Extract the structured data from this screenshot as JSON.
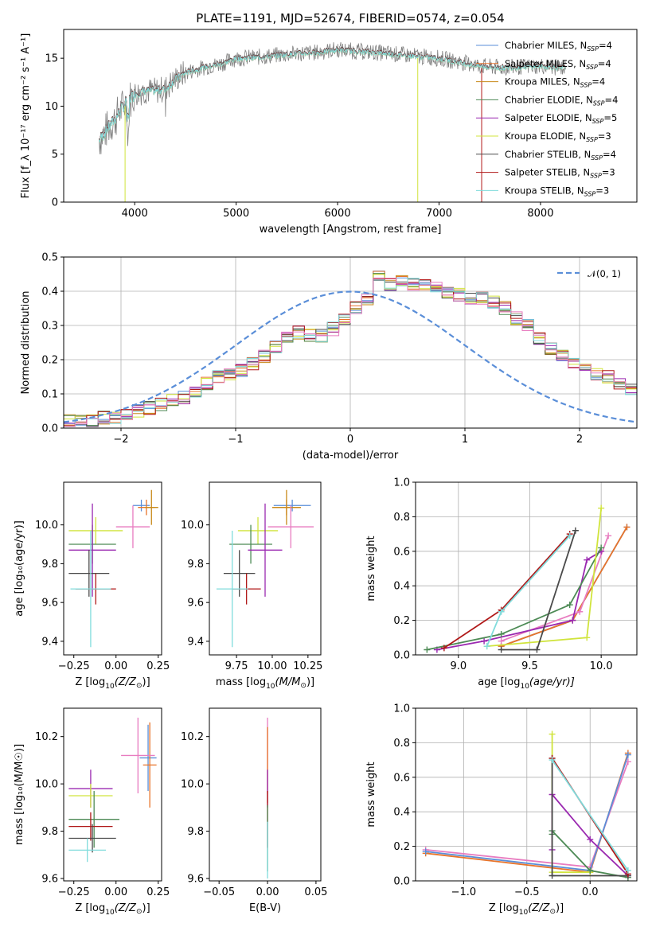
{
  "colors": {
    "chabrier_miles": "#5a8ed8",
    "salpeter_miles": "#e8742a",
    "kroupa_miles": "#c88a1a",
    "chabrier_elodie": "#4d8a55",
    "salpeter_elodie": "#9a28b0",
    "kroupa_elodie": "#d0e43c",
    "chabrier_stelib": "#4a4a4a",
    "salpeter_stelib": "#b01818",
    "kroupa_stelib": "#80dcdc",
    "pink": "#e87cc0",
    "data": "#808080"
  },
  "chart_data": [
    {
      "id": "spectrum",
      "type": "line",
      "title": "PLATE=1191, MJD=52674, FIBERID=0574, z=0.054",
      "xlabel": "wavelength [Angstrom, rest frame]",
      "ylabel": "Flux [f_λ 10⁻¹⁷ erg cm⁻² s⁻¹ A⁻¹]",
      "xlim": [
        3300,
        8950
      ],
      "ylim": [
        0,
        18
      ],
      "xticks": [
        "4000",
        "5000",
        "6000",
        "7000",
        "8000"
      ],
      "yticks": [
        "0",
        "5",
        "10",
        "15"
      ],
      "x": [
        3650,
        3700,
        3800,
        3900,
        4000,
        4100,
        4200,
        4300,
        4400,
        4500,
        4600,
        4700,
        4800,
        4900,
        5000,
        5200,
        5400,
        5600,
        5800,
        6000,
        6200,
        6400,
        6600,
        6800,
        7000,
        7200,
        7400,
        7600,
        7800,
        8000,
        8200
      ],
      "y_model": [
        6.5,
        7.2,
        8.6,
        10.2,
        11.3,
        11.6,
        11.6,
        11.8,
        12.8,
        13.5,
        13.8,
        14.1,
        14.3,
        14.6,
        15.0,
        15.1,
        15.3,
        15.5,
        15.6,
        15.9,
        15.7,
        15.6,
        15.4,
        15.2,
        15.0,
        14.6,
        14.2,
        14.0,
        14.1,
        14.2,
        14.0
      ],
      "series": [
        {
          "name": "Chabrier MILES, N",
          "nssp": "=4",
          "color_key": "chabrier_miles"
        },
        {
          "name": "Salpeter MILES, N",
          "nssp": "=4",
          "color_key": "salpeter_miles"
        },
        {
          "name": "Kroupa MILES, N",
          "nssp": "=4",
          "color_key": "kroupa_miles"
        },
        {
          "name": "Chabrier ELODIE, N",
          "nssp": "=4",
          "color_key": "chabrier_elodie"
        },
        {
          "name": "Salpeter ELODIE, N",
          "nssp": "=5",
          "color_key": "salpeter_elodie"
        },
        {
          "name": "Kroupa ELODIE, N",
          "nssp": "=3",
          "color_key": "kroupa_elodie"
        },
        {
          "name": "Chabrier STELIB, N",
          "nssp": "=4",
          "color_key": "chabrier_stelib"
        },
        {
          "name": "Salpeter STELIB, N",
          "nssp": "=3",
          "color_key": "salpeter_stelib"
        },
        {
          "name": "Kroupa STELIB, N",
          "nssp": "=3",
          "color_key": "kroupa_stelib"
        }
      ],
      "legend_sub": "SSP",
      "legend_position": "upper-right"
    },
    {
      "id": "residuals",
      "type": "histogram",
      "xlabel": "(data-model)/error",
      "ylabel": "Normed distribution",
      "xlim": [
        -2.5,
        2.5
      ],
      "ylim": [
        0,
        0.5
      ],
      "xticks": [
        "−2",
        "−1",
        "0",
        "1",
        "2"
      ],
      "yticks": [
        "0.0",
        "0.1",
        "0.2",
        "0.3",
        "0.4",
        "0.5"
      ],
      "bin_width": 0.1,
      "bin_start": -2.5,
      "values": [
        0.02,
        0.02,
        0.02,
        0.03,
        0.03,
        0.04,
        0.05,
        0.06,
        0.07,
        0.08,
        0.09,
        0.11,
        0.13,
        0.15,
        0.16,
        0.17,
        0.19,
        0.21,
        0.24,
        0.27,
        0.28,
        0.27,
        0.27,
        0.29,
        0.32,
        0.35,
        0.38,
        0.45,
        0.42,
        0.43,
        0.42,
        0.42,
        0.41,
        0.4,
        0.39,
        0.38,
        0.38,
        0.37,
        0.35,
        0.32,
        0.3,
        0.26,
        0.23,
        0.21,
        0.19,
        0.17,
        0.16,
        0.15,
        0.13,
        0.11,
        0.09,
        0.08,
        0.06,
        0.05,
        0.04,
        0.03,
        0.03,
        0.02,
        0.02,
        0.02
      ],
      "legend": "𝒩(0, 1)",
      "legend_position": "upper-right",
      "grid": true
    },
    {
      "id": "age_vs_z",
      "type": "errorbar",
      "xlabel_pre": "Z [log",
      "xlabel_sub": "10",
      "xlabel_post": "(Z/Z",
      "xlabel_end": ")]",
      "ylabel": "age  [log₁₀(age/yr)]",
      "xlim": [
        -0.31,
        0.27
      ],
      "ylim": [
        9.33,
        10.22
      ],
      "xticks": [
        "−0.25",
        "0.00",
        "0.25"
      ],
      "yticks": [
        "9.4",
        "9.6",
        "9.8",
        "10.0"
      ],
      "points": [
        {
          "x": 0.15,
          "y": 10.1,
          "xerr": 0.05,
          "yerr": 0.03,
          "color_key": "chabrier_miles"
        },
        {
          "x": 0.18,
          "y": 10.09,
          "xerr": 0.05,
          "yerr": 0.04,
          "color_key": "salpeter_miles"
        },
        {
          "x": 0.21,
          "y": 10.09,
          "xerr": 0.04,
          "yerr": 0.09,
          "color_key": "kroupa_miles"
        },
        {
          "x": 0.1,
          "y": 9.99,
          "xerr": 0.1,
          "yerr": 0.11,
          "color_key": "pink"
        },
        {
          "x": -0.12,
          "y": 9.97,
          "xerr": 0.16,
          "yerr": 0.07,
          "color_key": "kroupa_elodie"
        },
        {
          "x": -0.14,
          "y": 9.9,
          "xerr": 0.14,
          "yerr": 0.1,
          "color_key": "chabrier_elodie"
        },
        {
          "x": -0.14,
          "y": 9.87,
          "xerr": 0.14,
          "yerr": 0.24,
          "color_key": "salpeter_elodie"
        },
        {
          "x": -0.16,
          "y": 9.75,
          "xerr": 0.12,
          "yerr": 0.12,
          "color_key": "chabrier_stelib"
        },
        {
          "x": -0.12,
          "y": 9.67,
          "xerr": 0.12,
          "yerr": 0.08,
          "color_key": "salpeter_stelib"
        },
        {
          "x": -0.15,
          "y": 9.67,
          "xerr": 0.12,
          "yerr": 0.3,
          "color_key": "kroupa_stelib"
        }
      ]
    },
    {
      "id": "age_vs_mass",
      "type": "errorbar",
      "xlabel_pre": "mass [log",
      "xlabel_sub": "10",
      "xlabel_post": "(M/M",
      "xlabel_end": ")]",
      "xlim": [
        9.56,
        10.34
      ],
      "ylim": [
        9.33,
        10.22
      ],
      "xticks": [
        "9.75",
        "10.00",
        "10.25"
      ],
      "yticks": [
        "9.4",
        "9.6",
        "9.8",
        "10.0"
      ],
      "points": [
        {
          "x": 10.14,
          "y": 10.1,
          "xerr": 0.13,
          "yerr": 0.03,
          "color_key": "chabrier_miles"
        },
        {
          "x": 10.1,
          "y": 10.09,
          "xerr": 0.1,
          "yerr": 0.04,
          "color_key": "salpeter_miles"
        },
        {
          "x": 10.1,
          "y": 10.09,
          "xerr": 0.1,
          "yerr": 0.09,
          "color_key": "kroupa_miles"
        },
        {
          "x": 10.13,
          "y": 9.99,
          "xerr": 0.16,
          "yerr": 0.11,
          "color_key": "pink"
        },
        {
          "x": 9.9,
          "y": 9.97,
          "xerr": 0.14,
          "yerr": 0.07,
          "color_key": "kroupa_elodie"
        },
        {
          "x": 9.85,
          "y": 9.9,
          "xerr": 0.15,
          "yerr": 0.1,
          "color_key": "chabrier_elodie"
        },
        {
          "x": 9.95,
          "y": 9.87,
          "xerr": 0.12,
          "yerr": 0.24,
          "color_key": "salpeter_elodie"
        },
        {
          "x": 9.77,
          "y": 9.75,
          "xerr": 0.11,
          "yerr": 0.12,
          "color_key": "chabrier_stelib"
        },
        {
          "x": 9.82,
          "y": 9.67,
          "xerr": 0.1,
          "yerr": 0.08,
          "color_key": "salpeter_stelib"
        },
        {
          "x": 9.72,
          "y": 9.67,
          "xerr": 0.11,
          "yerr": 0.3,
          "color_key": "kroupa_stelib"
        }
      ]
    },
    {
      "id": "weight_vs_age",
      "type": "line",
      "xlabel_pre": "age  [log",
      "xlabel_sub": "10",
      "xlabel_post": "(age/yr)]",
      "ylabel": "mass weight",
      "xlim": [
        8.7,
        10.25
      ],
      "ylim": [
        0,
        1
      ],
      "xticks": [
        "9.0",
        "9.5",
        "10.0"
      ],
      "yticks": [
        "0.0",
        "0.2",
        "0.4",
        "0.6",
        "0.8",
        "1.0"
      ],
      "grid": true,
      "series": [
        {
          "color_key": "chabrier_miles",
          "x": [
            9.3,
            9.8,
            10.18
          ],
          "y": [
            0.05,
            0.2,
            0.74
          ]
        },
        {
          "color_key": "salpeter_miles",
          "x": [
            9.3,
            9.8,
            10.18
          ],
          "y": [
            0.05,
            0.2,
            0.74
          ]
        },
        {
          "color_key": "pink",
          "x": [
            9.3,
            9.85,
            10.05
          ],
          "y": [
            0.08,
            0.25,
            0.69
          ]
        },
        {
          "color_key": "salpeter_elodie",
          "x": [
            8.85,
            9.18,
            9.8,
            9.9,
            10.0
          ],
          "y": [
            0.03,
            0.08,
            0.2,
            0.55,
            0.6
          ]
        },
        {
          "color_key": "chabrier_elodie",
          "x": [
            8.78,
            9.3,
            9.78,
            10.0
          ],
          "y": [
            0.03,
            0.12,
            0.29,
            0.62
          ]
        },
        {
          "color_key": "kroupa_elodie",
          "x": [
            9.2,
            9.9,
            10.0
          ],
          "y": [
            0.05,
            0.1,
            0.85
          ]
        },
        {
          "color_key": "chabrier_stelib",
          "x": [
            9.3,
            9.55,
            9.82
          ],
          "y": [
            0.03,
            0.03,
            0.72
          ]
        },
        {
          "color_key": "salpeter_stelib",
          "x": [
            8.9,
            9.3,
            9.78
          ],
          "y": [
            0.04,
            0.26,
            0.7
          ]
        },
        {
          "color_key": "kroupa_stelib",
          "x": [
            9.2,
            9.3,
            9.78
          ],
          "y": [
            0.05,
            0.25,
            0.69
          ]
        }
      ]
    },
    {
      "id": "mass_vs_z",
      "type": "errorbar",
      "xlabel_pre": "Z [log",
      "xlabel_sub": "10",
      "xlabel_post": "(Z/Z",
      "xlabel_end": ")]",
      "ylabel": "mass [log₁₀(M/M☉)]",
      "xlim": [
        -0.31,
        0.27
      ],
      "ylim": [
        9.59,
        10.32
      ],
      "xticks": [
        "−0.25",
        "0.00",
        "0.25"
      ],
      "yticks": [
        "9.6",
        "9.8",
        "10.0",
        "10.2"
      ],
      "points": [
        {
          "x": 0.19,
          "y": 10.11,
          "xerr": 0.05,
          "yerr": 0.14,
          "color_key": "chabrier_miles"
        },
        {
          "x": 0.2,
          "y": 10.08,
          "xerr": 0.04,
          "yerr": 0.18,
          "color_key": "salpeter_miles"
        },
        {
          "x": 0.13,
          "y": 10.12,
          "xerr": 0.1,
          "yerr": 0.16,
          "color_key": "pink"
        },
        {
          "x": -0.15,
          "y": 9.98,
          "xerr": 0.13,
          "yerr": 0.08,
          "color_key": "salpeter_elodie"
        },
        {
          "x": -0.15,
          "y": 9.95,
          "xerr": 0.13,
          "yerr": 0.05,
          "color_key": "kroupa_elodie"
        },
        {
          "x": -0.13,
          "y": 9.85,
          "xerr": 0.15,
          "yerr": 0.12,
          "color_key": "chabrier_elodie"
        },
        {
          "x": -0.15,
          "y": 9.82,
          "xerr": 0.13,
          "yerr": 0.06,
          "color_key": "salpeter_stelib"
        },
        {
          "x": -0.14,
          "y": 9.77,
          "xerr": 0.14,
          "yerr": 0.06,
          "color_key": "chabrier_stelib"
        },
        {
          "x": -0.17,
          "y": 9.72,
          "xerr": 0.11,
          "yerr": 0.05,
          "color_key": "kroupa_stelib"
        }
      ]
    },
    {
      "id": "mass_vs_ebv",
      "type": "errorbar",
      "xlabel": "E(B-V)",
      "xlim": [
        -0.06,
        0.055
      ],
      "ylim": [
        9.59,
        10.32
      ],
      "xticks": [
        "−0.05",
        "0.00",
        "0.05"
      ],
      "yticks": [
        "9.6",
        "9.8",
        "10.0",
        "10.2"
      ],
      "points": [
        {
          "x": 0.0,
          "y": 10.12,
          "xerr": 0.0,
          "yerr": 0.16,
          "color_key": "pink"
        },
        {
          "x": 0.0,
          "y": 10.08,
          "xerr": 0.0,
          "yerr": 0.16,
          "color_key": "salpeter_miles"
        },
        {
          "x": 0.0,
          "y": 9.98,
          "xerr": 0.0,
          "yerr": 0.08,
          "color_key": "salpeter_elodie"
        },
        {
          "x": 0.0,
          "y": 9.85,
          "xerr": 0.0,
          "yerr": 0.12,
          "color_key": "salpeter_stelib"
        },
        {
          "x": 0.0,
          "y": 9.77,
          "xerr": 0.0,
          "yerr": 0.14,
          "color_key": "chabrier_elodie"
        },
        {
          "x": 0.0,
          "y": 9.72,
          "xerr": 0.0,
          "yerr": 0.12,
          "color_key": "kroupa_stelib"
        }
      ]
    },
    {
      "id": "weight_vs_z",
      "type": "line",
      "xlabel_pre": "Z [log",
      "xlabel_sub": "10",
      "xlabel_post": "(Z/Z",
      "xlabel_end": ")]",
      "ylabel": "mass weight",
      "xlim": [
        -1.38,
        0.37
      ],
      "ylim": [
        0,
        1
      ],
      "xticks": [
        "−1.0",
        "−0.5",
        "0.0"
      ],
      "yticks": [
        "0.0",
        "0.2",
        "0.4",
        "0.6",
        "0.8",
        "1.0"
      ],
      "grid": true,
      "series": [
        {
          "color_key": "salpeter_miles",
          "x": [
            -1.3,
            0.0,
            0.3
          ],
          "y": [
            0.16,
            0.05,
            0.74
          ]
        },
        {
          "color_key": "pink",
          "x": [
            -1.3,
            0.0,
            0.3
          ],
          "y": [
            0.18,
            0.08,
            0.69
          ]
        },
        {
          "color_key": "chabrier_miles",
          "x": [
            -1.3,
            0.0,
            0.3
          ],
          "y": [
            0.17,
            0.06,
            0.73
          ]
        },
        {
          "color_key": "kroupa_elodie",
          "x": [
            -0.3,
            -0.3,
            0.0
          ],
          "y": [
            0.85,
            0.05,
            0.05
          ]
        },
        {
          "color_key": "chabrier_elodie",
          "x": [
            -0.3,
            -0.3,
            0.0,
            0.3
          ],
          "y": [
            0.27,
            0.29,
            0.06,
            0.02
          ]
        },
        {
          "color_key": "salpeter_elodie",
          "x": [
            -0.3,
            -0.3,
            0.0,
            0.3
          ],
          "y": [
            0.18,
            0.5,
            0.24,
            0.03
          ]
        },
        {
          "color_key": "chabrier_stelib",
          "x": [
            -0.3,
            -0.3,
            0.3
          ],
          "y": [
            0.71,
            0.03,
            0.03
          ]
        },
        {
          "color_key": "salpeter_stelib",
          "x": [
            -0.3,
            0.3
          ],
          "y": [
            0.71,
            0.04
          ]
        },
        {
          "color_key": "kroupa_stelib",
          "x": [
            -0.3,
            0.3
          ],
          "y": [
            0.7,
            0.06
          ]
        }
      ]
    }
  ]
}
